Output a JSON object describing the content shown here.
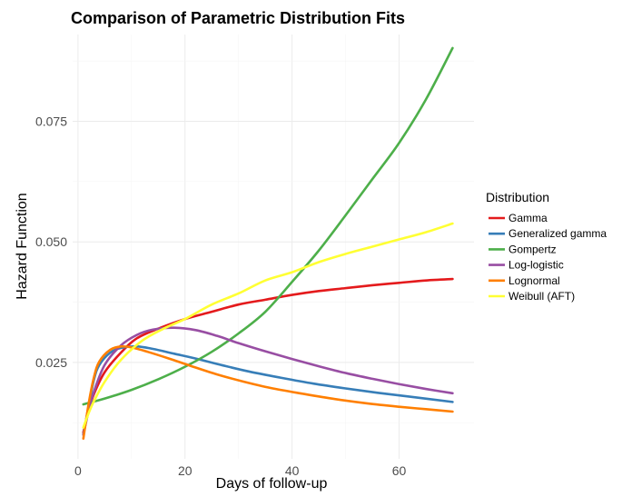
{
  "chart_data": {
    "type": "line",
    "title": "Comparison of Parametric Distribution Fits",
    "xlabel": "Days of follow-up",
    "ylabel": "Hazard Function",
    "xlim": [
      -1,
      74
    ],
    "ylim": [
      0.005,
      0.093
    ],
    "x_ticks": [
      0,
      20,
      40,
      60
    ],
    "x_tick_labels": [
      "0",
      "20",
      "40",
      "60"
    ],
    "y_ticks": [
      0.025,
      0.05,
      0.075
    ],
    "y_tick_labels": [
      "0.025",
      "0.050",
      "0.075"
    ],
    "grid": true,
    "legend": {
      "title": "Distribution",
      "position": "right"
    },
    "series": [
      {
        "name": "Gamma",
        "color": "#e41a1c",
        "points": [
          [
            1,
            0.0105
          ],
          [
            2,
            0.015
          ],
          [
            3,
            0.0185
          ],
          [
            5,
            0.023
          ],
          [
            8,
            0.027
          ],
          [
            11,
            0.03
          ],
          [
            15,
            0.032
          ],
          [
            20,
            0.034
          ],
          [
            25,
            0.0355
          ],
          [
            30,
            0.037
          ],
          [
            35,
            0.038
          ],
          [
            40,
            0.039
          ],
          [
            45,
            0.0398
          ],
          [
            50,
            0.0404
          ],
          [
            55,
            0.041
          ],
          [
            60,
            0.0415
          ],
          [
            65,
            0.042
          ],
          [
            70,
            0.0423
          ]
        ]
      },
      {
        "name": "Generalized gamma",
        "color": "#377eb8",
        "points": [
          [
            1,
            0.01
          ],
          [
            2,
            0.016
          ],
          [
            3,
            0.0215
          ],
          [
            4,
            0.0245
          ],
          [
            6,
            0.027
          ],
          [
            8,
            0.028
          ],
          [
            11,
            0.0283
          ],
          [
            14,
            0.0278
          ],
          [
            18,
            0.0268
          ],
          [
            22,
            0.0258
          ],
          [
            27,
            0.0244
          ],
          [
            32,
            0.0231
          ],
          [
            38,
            0.0218
          ],
          [
            44,
            0.0206
          ],
          [
            50,
            0.0196
          ],
          [
            56,
            0.0187
          ],
          [
            62,
            0.0179
          ],
          [
            70,
            0.0168
          ]
        ]
      },
      {
        "name": "Gompertz",
        "color": "#4daf4a",
        "points": [
          [
            1,
            0.0163
          ],
          [
            5,
            0.0175
          ],
          [
            10,
            0.0193
          ],
          [
            15,
            0.0215
          ],
          [
            20,
            0.0241
          ],
          [
            25,
            0.0272
          ],
          [
            30,
            0.031
          ],
          [
            35,
            0.0355
          ],
          [
            40,
            0.0417
          ],
          [
            45,
            0.0482
          ],
          [
            50,
            0.0555
          ],
          [
            55,
            0.063
          ],
          [
            60,
            0.0705
          ],
          [
            65,
            0.0795
          ],
          [
            70,
            0.0902
          ]
        ]
      },
      {
        "name": "Log-logistic",
        "color": "#984ea3",
        "points": [
          [
            1,
            0.01
          ],
          [
            2,
            0.015
          ],
          [
            3,
            0.019
          ],
          [
            5,
            0.0245
          ],
          [
            8,
            0.0285
          ],
          [
            11,
            0.0307
          ],
          [
            14,
            0.0318
          ],
          [
            18,
            0.0322
          ],
          [
            22,
            0.0317
          ],
          [
            26,
            0.0305
          ],
          [
            30,
            0.029
          ],
          [
            35,
            0.0273
          ],
          [
            40,
            0.0257
          ],
          [
            45,
            0.0242
          ],
          [
            50,
            0.0228
          ],
          [
            55,
            0.0216
          ],
          [
            60,
            0.0205
          ],
          [
            65,
            0.0195
          ],
          [
            70,
            0.0186
          ]
        ]
      },
      {
        "name": "Lognormal",
        "color": "#ff7f00",
        "points": [
          [
            1,
            0.0092
          ],
          [
            2,
            0.0165
          ],
          [
            3,
            0.022
          ],
          [
            4,
            0.0252
          ],
          [
            6,
            0.0276
          ],
          [
            8,
            0.0283
          ],
          [
            10,
            0.0281
          ],
          [
            13,
            0.0272
          ],
          [
            17,
            0.0258
          ],
          [
            21,
            0.0243
          ],
          [
            26,
            0.0225
          ],
          [
            31,
            0.021
          ],
          [
            36,
            0.0197
          ],
          [
            42,
            0.0185
          ],
          [
            48,
            0.0174
          ],
          [
            54,
            0.0165
          ],
          [
            60,
            0.0158
          ],
          [
            65,
            0.0153
          ],
          [
            70,
            0.0148
          ]
        ]
      },
      {
        "name": "Weibull (AFT)",
        "color": "#ffff33",
        "points": [
          [
            1,
            0.0115
          ],
          [
            2,
            0.0145
          ],
          [
            3,
            0.017
          ],
          [
            5,
            0.021
          ],
          [
            8,
            0.0255
          ],
          [
            12,
            0.0295
          ],
          [
            16,
            0.032
          ],
          [
            20,
            0.034
          ],
          [
            25,
            0.037
          ],
          [
            30,
            0.0393
          ],
          [
            35,
            0.042
          ],
          [
            40,
            0.0437
          ],
          [
            45,
            0.0458
          ],
          [
            50,
            0.0475
          ],
          [
            55,
            0.049
          ],
          [
            60,
            0.0505
          ],
          [
            65,
            0.052
          ],
          [
            70,
            0.0538
          ]
        ]
      }
    ]
  }
}
